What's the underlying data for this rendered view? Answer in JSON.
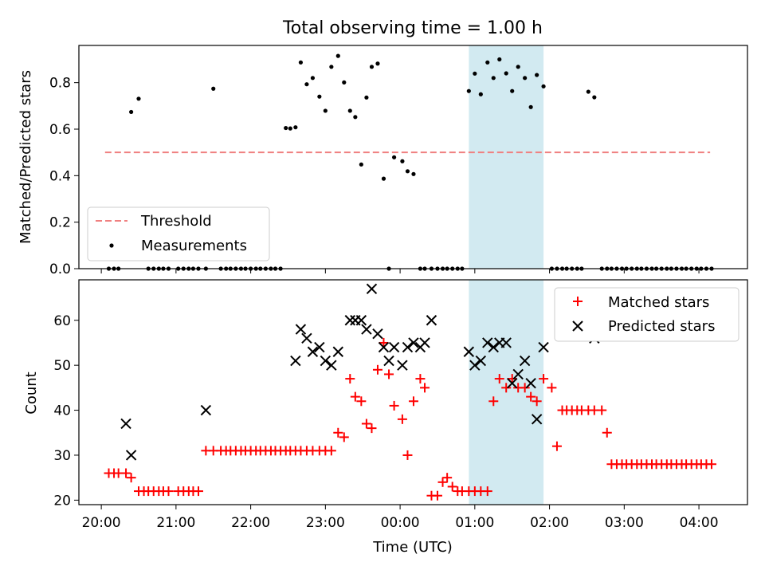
{
  "figure": {
    "title": "Total observing time = 1.00 h",
    "xlabel": "Time (UTC)"
  },
  "chart_data": [
    {
      "type": "scatter",
      "ylabel": "Matched/Predicted stars",
      "x_unit": "hours relative to 00:00 UTC",
      "xlim": [
        -4.3,
        4.65
      ],
      "ylim": [
        0,
        0.96
      ],
      "yticks": [
        0.0,
        0.2,
        0.4,
        0.6,
        0.8
      ],
      "ytick_labels": [
        "0.0",
        "0.2",
        "0.4",
        "0.6",
        "0.8"
      ],
      "shaded_span": {
        "x": [
          0.92,
          1.92
        ],
        "color": "#add8e6"
      },
      "threshold": {
        "name": "Threshold",
        "value": 0.5,
        "x": [
          -3.95,
          4.15
        ],
        "color": "#f08080",
        "style": "dashed"
      },
      "legend": {
        "position": "lower-left",
        "entries": [
          "Threshold",
          "Measurements"
        ]
      },
      "series": [
        {
          "name": "Measurements",
          "color": "#000000",
          "x": [
            -3.9,
            -3.83,
            -3.77,
            -3.6,
            -3.5,
            -3.37,
            -3.3,
            -3.23,
            -3.17,
            -3.1,
            -2.97,
            -2.9,
            -2.83,
            -2.77,
            -2.7,
            -2.6,
            -2.5,
            -2.4,
            -2.33,
            -2.27,
            -2.2,
            -2.13,
            -2.07,
            -2.0,
            -1.93,
            -1.87,
            -1.8,
            -1.73,
            -1.67,
            -1.6,
            -1.53,
            -1.47,
            -1.4,
            -1.33,
            -1.25,
            -1.17,
            -1.08,
            -1.0,
            -0.92,
            -0.83,
            -0.75,
            -0.67,
            -0.6,
            -0.52,
            -0.45,
            -0.38,
            -0.3,
            -0.22,
            -0.15,
            -0.08,
            0.03,
            0.1,
            0.18,
            0.27,
            0.33,
            0.42,
            0.5,
            0.57,
            0.63,
            0.7,
            0.77,
            0.83,
            0.92,
            1.0,
            1.08,
            1.17,
            1.25,
            1.33,
            1.42,
            1.5,
            1.58,
            1.67,
            1.75,
            1.83,
            1.92,
            2.03,
            2.1,
            2.17,
            2.23,
            2.3,
            2.37,
            2.43,
            2.52,
            2.6,
            2.7,
            2.77,
            2.83,
            2.9,
            2.97,
            3.03,
            3.1,
            3.17,
            3.23,
            3.3,
            3.37,
            3.43,
            3.5,
            3.57,
            3.63,
            3.7,
            3.77,
            3.83,
            3.9,
            3.97,
            4.03,
            4.1,
            4.17
          ],
          "y": [
            0,
            0,
            0,
            0.674,
            0.731,
            0,
            0,
            0,
            0,
            0,
            0,
            0,
            0,
            0,
            0,
            0,
            0.774,
            0,
            0,
            0,
            0,
            0,
            0,
            0,
            0,
            0,
            0,
            0,
            0,
            0,
            0.605,
            0.603,
            0.608,
            0.887,
            0.793,
            0.82,
            0.74,
            0.679,
            0.868,
            0.915,
            0.801,
            0.679,
            0.652,
            0.448,
            0.736,
            0.868,
            0.882,
            0.387,
            0,
            0.479,
            0.462,
            0.419,
            0.407,
            0,
            0,
            0,
            0,
            0,
            0,
            0,
            0,
            0,
            0.764,
            0.839,
            0.75,
            0.887,
            0.82,
            0.9,
            0.84,
            0.764,
            0.868,
            0.82,
            0.695,
            0.833,
            0.784,
            0,
            0,
            0,
            0,
            0,
            0,
            0,
            0.761,
            0.737,
            0,
            0,
            0,
            0,
            0,
            0,
            0,
            0,
            0,
            0,
            0,
            0,
            0,
            0,
            0,
            0,
            0,
            0,
            0,
            0,
            0,
            0,
            0
          ],
          "marker": "dot"
        }
      ]
    },
    {
      "type": "scatter",
      "ylabel": "Count",
      "x_unit": "hours relative to 00:00 UTC",
      "xlim": [
        -4.3,
        4.65
      ],
      "ylim": [
        19,
        69
      ],
      "yticks": [
        20,
        30,
        40,
        50,
        60
      ],
      "ytick_labels": [
        "20",
        "30",
        "40",
        "50",
        "60"
      ],
      "xticks": [
        -4,
        -3,
        -2,
        -1,
        0,
        1,
        2,
        3,
        4
      ],
      "xtick_labels": [
        "20:00",
        "21:00",
        "22:00",
        "23:00",
        "00:00",
        "01:00",
        "02:00",
        "03:00",
        "04:00"
      ],
      "shaded_span": {
        "x": [
          0.92,
          1.92
        ],
        "color": "#add8e6"
      },
      "legend": {
        "position": "top-right",
        "entries": [
          "Matched stars",
          "Predicted stars"
        ]
      },
      "series": [
        {
          "name": "Matched stars",
          "color": "#ff0000",
          "marker": "plus",
          "x": [
            -3.9,
            -3.83,
            -3.77,
            -3.67,
            -3.6,
            -3.5,
            -3.43,
            -3.37,
            -3.3,
            -3.23,
            -3.17,
            -3.1,
            -2.97,
            -2.9,
            -2.83,
            -2.77,
            -2.7,
            -2.6,
            -2.5,
            -2.4,
            -2.33,
            -2.27,
            -2.2,
            -2.13,
            -2.07,
            -2.0,
            -1.93,
            -1.87,
            -1.8,
            -1.73,
            -1.67,
            -1.6,
            -1.53,
            -1.47,
            -1.4,
            -1.33,
            -1.25,
            -1.17,
            -1.08,
            -1.0,
            -0.92,
            -0.83,
            -0.75,
            -0.67,
            -0.6,
            -0.52,
            -0.45,
            -0.38,
            -0.3,
            -0.22,
            -0.15,
            -0.08,
            0.03,
            0.1,
            0.18,
            0.27,
            0.33,
            0.42,
            0.5,
            0.57,
            0.63,
            0.7,
            0.77,
            0.83,
            0.92,
            1.0,
            1.08,
            1.17,
            1.25,
            1.33,
            1.42,
            1.5,
            1.58,
            1.67,
            1.75,
            1.83,
            1.92,
            2.03,
            2.1,
            2.17,
            2.23,
            2.3,
            2.37,
            2.43,
            2.52,
            2.6,
            2.7,
            2.77,
            2.83,
            2.9,
            2.97,
            3.03,
            3.1,
            3.17,
            3.23,
            3.3,
            3.37,
            3.43,
            3.5,
            3.57,
            3.63,
            3.7,
            3.77,
            3.83,
            3.9,
            3.97,
            4.03,
            4.1,
            4.17
          ],
          "y": [
            26,
            26,
            26,
            26,
            25,
            22,
            22,
            22,
            22,
            22,
            22,
            22,
            22,
            22,
            22,
            22,
            22,
            31,
            31,
            31,
            31,
            31,
            31,
            31,
            31,
            31,
            31,
            31,
            31,
            31,
            31,
            31,
            31,
            31,
            31,
            31,
            31,
            31,
            31,
            31,
            31,
            35,
            34,
            47,
            43,
            42,
            37,
            36,
            49,
            55,
            48,
            41,
            38,
            30,
            42,
            47,
            45,
            21,
            21,
            24,
            25,
            23,
            22,
            22,
            22,
            22,
            22,
            22,
            42,
            47,
            45,
            47,
            45,
            45,
            43,
            42,
            47,
            45,
            32,
            40,
            40,
            40,
            40,
            40,
            40,
            40,
            40,
            35,
            28,
            28,
            28,
            28,
            28,
            28,
            28,
            28,
            28,
            28,
            28,
            28,
            28,
            28,
            28,
            28,
            28,
            28,
            28,
            28,
            28
          ]
        },
        {
          "name": "Predicted stars",
          "color": "#000000",
          "marker": "x",
          "x": [
            -3.67,
            -3.6,
            -2.6,
            -1.4,
            -1.33,
            -1.25,
            -1.17,
            -1.08,
            -1.0,
            -0.92,
            -0.83,
            -0.67,
            -0.6,
            -0.52,
            -0.45,
            -0.38,
            -0.3,
            -0.22,
            -0.15,
            -0.08,
            0.03,
            0.1,
            0.18,
            0.27,
            0.33,
            0.42,
            0.92,
            1.0,
            1.08,
            1.17,
            1.25,
            1.33,
            1.42,
            1.5,
            1.58,
            1.67,
            1.75,
            1.83,
            1.92,
            2.52,
            2.6
          ],
          "y": [
            37,
            30,
            40,
            51,
            58,
            56,
            53,
            54,
            51,
            50,
            53,
            60,
            60,
            60,
            58,
            67,
            57,
            54,
            51,
            54,
            50,
            54,
            55,
            54,
            55,
            60,
            53,
            50,
            51,
            55,
            54,
            55,
            55,
            46,
            48,
            51,
            46,
            38,
            54,
            58,
            56
          ]
        }
      ]
    }
  ]
}
